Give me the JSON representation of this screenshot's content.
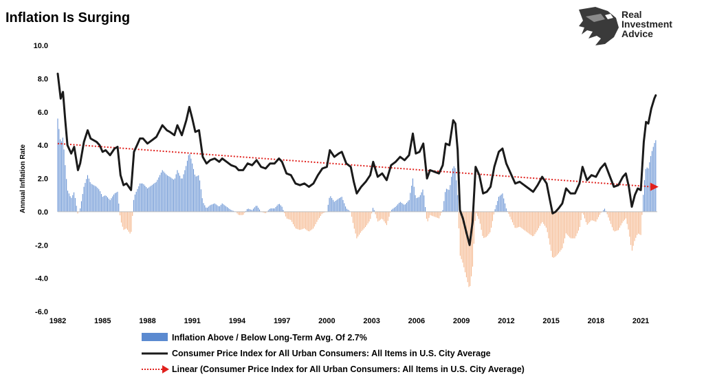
{
  "logo": {
    "lines": [
      "Real",
      "Investment",
      "Advice"
    ],
    "color": "#2b2b2b"
  },
  "chart_data": {
    "type": "bar",
    "title": "Inflation Is Surging",
    "ylabel": "Annual Inflation Rate",
    "ylim": [
      -6,
      10
    ],
    "yticks": [
      "10.0",
      "8.0",
      "6.0",
      "4.0",
      "2.0",
      "0.0",
      "-2.0",
      "-4.0",
      "-6.0"
    ],
    "ytick_values": [
      10,
      8,
      6,
      4,
      2,
      0,
      -2,
      -4,
      -6
    ],
    "xlim": [
      1982,
      2022.1
    ],
    "xticks": [
      "1982",
      "1985",
      "1988",
      "1991",
      "1994",
      "1997",
      "2000",
      "2003",
      "2006",
      "2009",
      "2012",
      "2015",
      "2018",
      "2021"
    ],
    "xtick_values": [
      1982,
      1985,
      1988,
      1991,
      1994,
      1997,
      2000,
      2003,
      2006,
      2009,
      2012,
      2015,
      2018,
      2021
    ],
    "long_term_avg": 2.7,
    "grid": false,
    "legend_position": "bottom",
    "colors": {
      "above": "#5b8ad0",
      "below": "#f4b183",
      "cpi_line": "#1a1a1a",
      "trend": "#e0201c"
    },
    "series": [
      {
        "name": "Inflation Above / Below Long-Term Avg. Of 2.7%",
        "kind": "bar",
        "derived_from": "Consumer Price Index for All Urban Consumers: All Items in U.S. City Average"
      },
      {
        "name": "Consumer Price Index for All Urban Consumers: All Items in U.S. City Average",
        "kind": "line",
        "x": [
          1982.0,
          1982.2,
          1982.35,
          1982.5,
          1982.65,
          1982.9,
          1983.1,
          1983.35,
          1983.5,
          1983.75,
          1984.0,
          1984.2,
          1984.4,
          1984.6,
          1984.8,
          1985.0,
          1985.2,
          1985.5,
          1985.8,
          1986.0,
          1986.2,
          1986.4,
          1986.6,
          1986.9,
          1987.1,
          1987.3,
          1987.5,
          1987.7,
          1988.0,
          1988.3,
          1988.6,
          1989.0,
          1989.3,
          1989.5,
          1989.8,
          1990.0,
          1990.3,
          1990.6,
          1990.8,
          1991.0,
          1991.2,
          1991.45,
          1991.7,
          1991.95,
          1992.2,
          1992.5,
          1992.8,
          1993.0,
          1993.3,
          1993.6,
          1993.9,
          1994.1,
          1994.4,
          1994.7,
          1995.0,
          1995.3,
          1995.6,
          1995.9,
          1996.2,
          1996.5,
          1996.8,
          1997.0,
          1997.3,
          1997.6,
          1997.9,
          1998.2,
          1998.5,
          1998.8,
          1999.1,
          1999.4,
          1999.7,
          2000.0,
          2000.2,
          2000.5,
          2000.8,
          2001.0,
          2001.3,
          2001.6,
          2001.8,
          2002.0,
          2002.3,
          2002.6,
          2002.9,
          2003.1,
          2003.4,
          2003.7,
          2004.0,
          2004.3,
          2004.6,
          2004.9,
          2005.2,
          2005.5,
          2005.75,
          2005.95,
          2006.2,
          2006.45,
          2006.7,
          2006.9,
          2007.2,
          2007.5,
          2007.75,
          2007.95,
          2008.2,
          2008.45,
          2008.6,
          2008.75,
          2008.9,
          2009.1,
          2009.35,
          2009.55,
          2009.75,
          2009.95,
          2010.2,
          2010.45,
          2010.7,
          2010.95,
          2011.2,
          2011.5,
          2011.75,
          2012.0,
          2012.3,
          2012.6,
          2012.9,
          2013.2,
          2013.5,
          2013.8,
          2014.1,
          2014.4,
          2014.7,
          2014.9,
          2015.1,
          2015.3,
          2015.5,
          2015.75,
          2016.0,
          2016.3,
          2016.6,
          2016.9,
          2017.1,
          2017.4,
          2017.7,
          2018.0,
          2018.3,
          2018.6,
          2018.9,
          2019.2,
          2019.5,
          2019.8,
          2020.0,
          2020.2,
          2020.4,
          2020.6,
          2020.8,
          2021.0,
          2021.2,
          2021.35,
          2021.5,
          2021.7,
          2021.9,
          2022.0
        ],
        "y": [
          8.3,
          6.8,
          7.2,
          5.5,
          4.0,
          3.5,
          3.9,
          2.5,
          2.9,
          4.2,
          4.9,
          4.4,
          4.3,
          4.2,
          4.0,
          3.6,
          3.7,
          3.4,
          3.8,
          3.9,
          2.2,
          1.6,
          1.7,
          1.3,
          3.6,
          4.0,
          4.4,
          4.4,
          4.1,
          4.3,
          4.5,
          5.2,
          4.9,
          4.8,
          4.6,
          5.2,
          4.6,
          5.5,
          6.3,
          5.6,
          4.8,
          4.9,
          3.3,
          2.9,
          3.1,
          3.2,
          3.0,
          3.2,
          3.0,
          2.8,
          2.7,
          2.5,
          2.5,
          2.9,
          2.8,
          3.1,
          2.7,
          2.6,
          2.9,
          2.9,
          3.2,
          3.0,
          2.3,
          2.2,
          1.7,
          1.6,
          1.7,
          1.5,
          1.7,
          2.2,
          2.6,
          2.7,
          3.7,
          3.3,
          3.5,
          3.6,
          2.9,
          2.7,
          1.8,
          1.1,
          1.5,
          1.8,
          2.2,
          3.0,
          2.1,
          2.3,
          1.9,
          2.8,
          3.0,
          3.3,
          3.1,
          3.4,
          4.7,
          3.5,
          3.6,
          4.1,
          2.0,
          2.5,
          2.4,
          2.3,
          2.8,
          4.1,
          4.0,
          5.5,
          5.3,
          3.7,
          0.1,
          -0.4,
          -1.3,
          -2.0,
          -0.6,
          2.7,
          2.2,
          1.1,
          1.2,
          1.5,
          2.7,
          3.6,
          3.8,
          2.9,
          2.3,
          1.7,
          1.8,
          1.6,
          1.4,
          1.2,
          1.6,
          2.1,
          1.7,
          0.8,
          -0.1,
          0.0,
          0.2,
          0.5,
          1.4,
          1.1,
          1.1,
          1.7,
          2.7,
          1.9,
          2.2,
          2.1,
          2.6,
          2.9,
          2.2,
          1.5,
          1.6,
          2.1,
          2.3,
          1.5,
          0.3,
          1.0,
          1.4,
          1.3,
          4.2,
          5.4,
          5.3,
          6.2,
          6.8,
          7.0
        ],
        "color": "#1a1a1a"
      },
      {
        "name": "Linear (Consumer Price Index for All Urban Consumers: All Items in U.S. City Average)",
        "kind": "trend",
        "x": [
          1982,
          2022
        ],
        "y": [
          4.1,
          1.5
        ],
        "color": "#e0201c"
      }
    ]
  }
}
